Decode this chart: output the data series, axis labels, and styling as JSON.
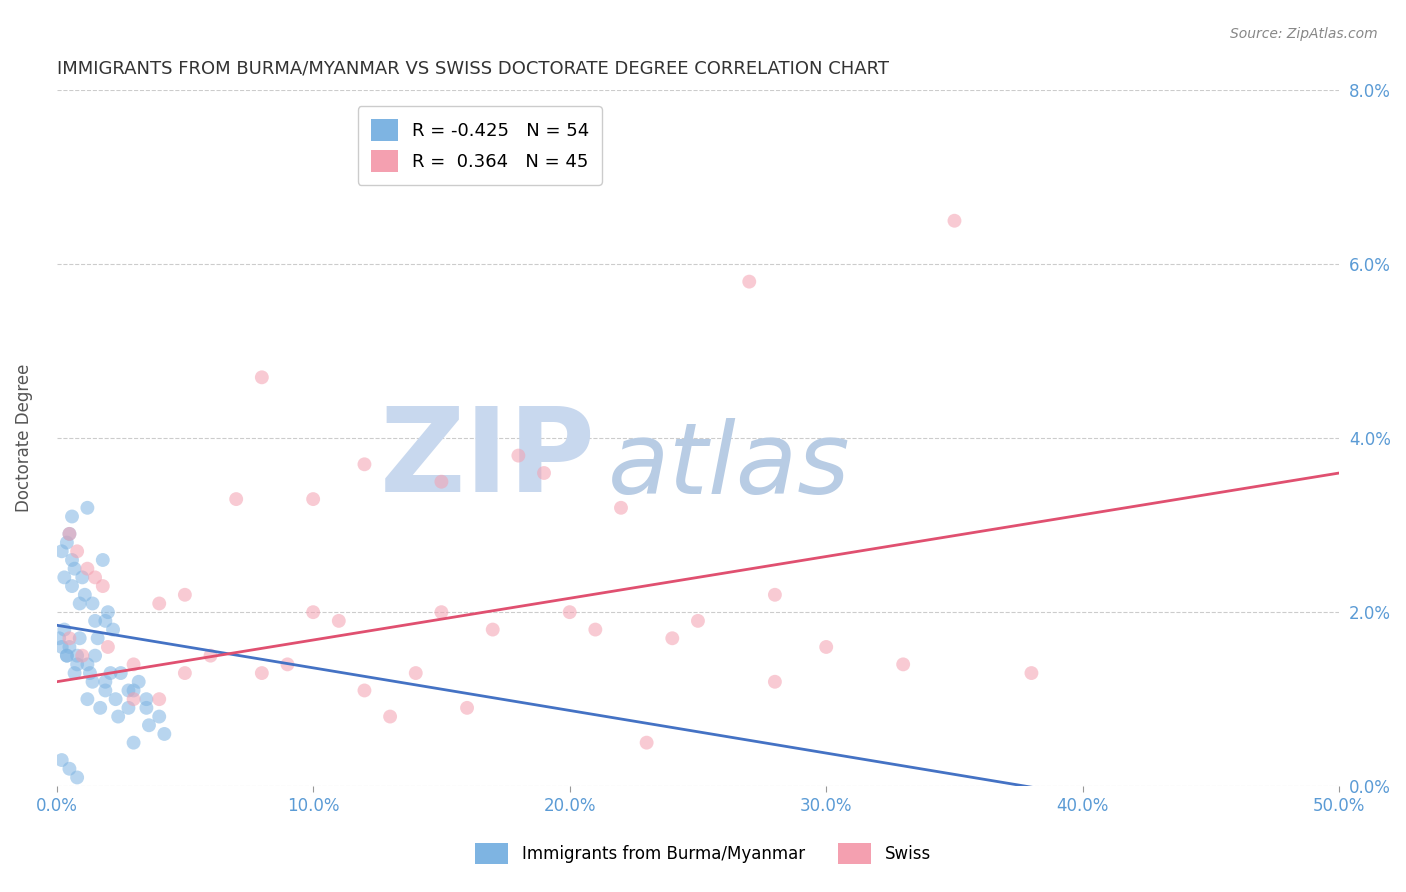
{
  "title": "IMMIGRANTS FROM BURMA/MYANMAR VS SWISS DOCTORATE DEGREE CORRELATION CHART",
  "source": "Source: ZipAtlas.com",
  "ylabel": "Doctorate Degree",
  "x_tick_values": [
    0.0,
    10.0,
    20.0,
    30.0,
    40.0,
    50.0
  ],
  "y_tick_values": [
    0.0,
    2.0,
    4.0,
    6.0,
    8.0
  ],
  "xlim": [
    0.0,
    50.0
  ],
  "ylim": [
    0.0,
    8.0
  ],
  "legend_entries": [
    {
      "label": "Immigrants from Burma/Myanmar",
      "color": "#7EB4E2",
      "R": -0.425,
      "N": 54
    },
    {
      "label": "Swiss",
      "color": "#F4A0B0",
      "R": 0.364,
      "N": 45
    }
  ],
  "blue_scatter": [
    [
      1.2,
      3.2
    ],
    [
      0.5,
      2.9
    ],
    [
      1.8,
      2.6
    ],
    [
      0.3,
      2.4
    ],
    [
      0.6,
      2.3
    ],
    [
      0.9,
      2.1
    ],
    [
      1.5,
      1.9
    ],
    [
      2.2,
      1.8
    ],
    [
      0.1,
      1.7
    ],
    [
      0.4,
      1.5
    ],
    [
      0.8,
      1.4
    ],
    [
      1.3,
      1.3
    ],
    [
      1.9,
      1.2
    ],
    [
      2.8,
      1.1
    ],
    [
      3.5,
      1.0
    ],
    [
      0.4,
      2.8
    ],
    [
      0.7,
      2.5
    ],
    [
      1.1,
      2.2
    ],
    [
      2.0,
      2.0
    ],
    [
      1.6,
      1.7
    ],
    [
      0.5,
      1.6
    ],
    [
      0.8,
      1.5
    ],
    [
      1.2,
      1.4
    ],
    [
      2.5,
      1.3
    ],
    [
      3.2,
      1.2
    ],
    [
      0.2,
      2.7
    ],
    [
      0.6,
      2.6
    ],
    [
      1.0,
      2.4
    ],
    [
      1.4,
      2.1
    ],
    [
      1.9,
      1.9
    ],
    [
      0.3,
      1.8
    ],
    [
      0.9,
      1.7
    ],
    [
      1.5,
      1.5
    ],
    [
      2.1,
      1.3
    ],
    [
      3.0,
      1.1
    ],
    [
      0.2,
      0.3
    ],
    [
      0.5,
      0.2
    ],
    [
      3.0,
      0.5
    ],
    [
      3.5,
      0.9
    ],
    [
      4.0,
      0.8
    ],
    [
      1.2,
      1.0
    ],
    [
      1.7,
      0.9
    ],
    [
      2.4,
      0.8
    ],
    [
      3.6,
      0.7
    ],
    [
      4.2,
      0.6
    ],
    [
      0.2,
      1.6
    ],
    [
      0.4,
      1.5
    ],
    [
      0.7,
      1.3
    ],
    [
      1.4,
      1.2
    ],
    [
      1.9,
      1.1
    ],
    [
      2.3,
      1.0
    ],
    [
      2.8,
      0.9
    ],
    [
      0.6,
      3.1
    ],
    [
      0.8,
      0.1
    ]
  ],
  "pink_scatter": [
    [
      0.5,
      2.9
    ],
    [
      0.8,
      2.7
    ],
    [
      1.2,
      2.5
    ],
    [
      1.8,
      2.3
    ],
    [
      7.0,
      3.3
    ],
    [
      10.0,
      3.3
    ],
    [
      15.0,
      2.0
    ],
    [
      20.0,
      2.0
    ],
    [
      25.0,
      1.9
    ],
    [
      30.0,
      1.6
    ],
    [
      1.0,
      1.5
    ],
    [
      3.0,
      1.4
    ],
    [
      5.0,
      1.3
    ],
    [
      8.0,
      1.3
    ],
    [
      12.0,
      1.1
    ],
    [
      0.5,
      1.7
    ],
    [
      2.0,
      1.6
    ],
    [
      6.0,
      1.5
    ],
    [
      9.0,
      1.4
    ],
    [
      14.0,
      1.3
    ],
    [
      8.0,
      4.7
    ],
    [
      15.0,
      3.5
    ],
    [
      19.0,
      3.6
    ],
    [
      22.0,
      3.2
    ],
    [
      28.0,
      2.2
    ],
    [
      12.0,
      3.7
    ],
    [
      18.0,
      3.8
    ],
    [
      4.0,
      2.1
    ],
    [
      11.0,
      1.9
    ],
    [
      21.0,
      1.8
    ],
    [
      1.5,
      2.4
    ],
    [
      5.0,
      2.2
    ],
    [
      10.0,
      2.0
    ],
    [
      17.0,
      1.8
    ],
    [
      24.0,
      1.7
    ],
    [
      27.0,
      5.8
    ],
    [
      35.0,
      6.5
    ],
    [
      3.0,
      1.0
    ],
    [
      13.0,
      0.8
    ],
    [
      23.0,
      0.5
    ],
    [
      33.0,
      1.4
    ],
    [
      38.0,
      1.3
    ],
    [
      4.0,
      1.0
    ],
    [
      16.0,
      0.9
    ],
    [
      28.0,
      1.2
    ]
  ],
  "blue_line": {
    "x": [
      0.0,
      50.0
    ],
    "y": [
      1.85,
      -0.6
    ]
  },
  "pink_line": {
    "x": [
      0.0,
      50.0
    ],
    "y": [
      1.2,
      3.6
    ]
  },
  "background_color": "#FFFFFF",
  "grid_color": "#CCCCCC",
  "title_color": "#333333",
  "axis_label_color": "#5B9BD5",
  "scatter_alpha": 0.55,
  "scatter_size": 100,
  "watermark_zip_color": "#C8D8EE",
  "watermark_atlas_color": "#B8CCE4",
  "watermark_fontsize": 85
}
